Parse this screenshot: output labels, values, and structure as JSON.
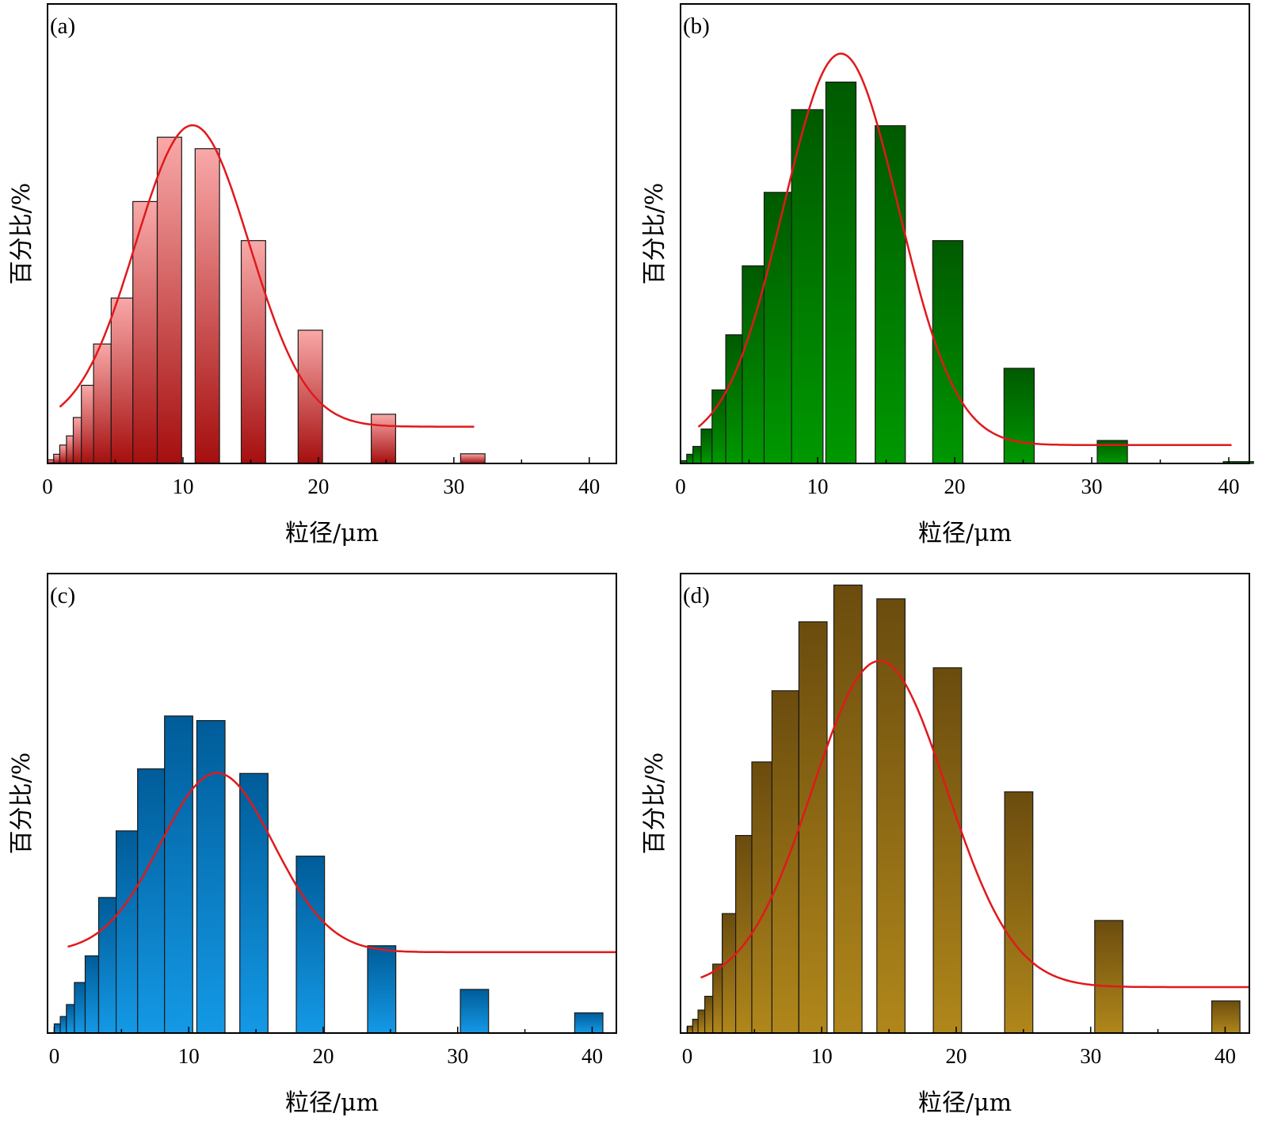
{
  "chart_data": [
    {
      "type": "bar",
      "panel_label": "(a)",
      "xlabel": "粒径/μm",
      "ylabel": "百分比/%",
      "xlim": [
        0,
        42
      ],
      "ylim": [
        0,
        100
      ],
      "xticks": [
        "0",
        "10",
        "20",
        "30",
        "40"
      ],
      "colors": {
        "top": "#f9a8a8",
        "bottom": "#a50e0e"
      },
      "bars": [
        {
          "x0": 0.0,
          "x1": 0.45,
          "value": 0.8
        },
        {
          "x0": 0.45,
          "x1": 0.9,
          "value": 2.0
        },
        {
          "x0": 0.9,
          "x1": 1.4,
          "value": 4.0
        },
        {
          "x0": 1.4,
          "x1": 1.9,
          "value": 6.0
        },
        {
          "x0": 1.9,
          "x1": 2.5,
          "value": 10.0
        },
        {
          "x0": 2.5,
          "x1": 3.4,
          "value": 17.0
        },
        {
          "x0": 3.4,
          "x1": 4.7,
          "value": 26.0
        },
        {
          "x0": 4.7,
          "x1": 6.3,
          "value": 36.0
        },
        {
          "x0": 6.3,
          "x1": 8.1,
          "value": 57.0
        },
        {
          "x0": 8.1,
          "x1": 9.9,
          "value": 71.0
        },
        {
          "x0": 10.9,
          "x1": 12.7,
          "value": 68.5
        },
        {
          "x0": 14.3,
          "x1": 16.1,
          "value": 48.5
        },
        {
          "x0": 18.5,
          "x1": 20.3,
          "value": 29.0
        },
        {
          "x0": 23.9,
          "x1": 25.7,
          "value": 10.7
        },
        {
          "x0": 30.5,
          "x1": 32.3,
          "value": 2.1
        }
      ],
      "fit": {
        "mu": 10.7,
        "sigma": 4.2,
        "height": 65.6,
        "baseline": 8.0,
        "x_start": 0.9,
        "x_end": 31.5,
        "color": "#e0191c"
      }
    },
    {
      "type": "bar",
      "panel_label": "(b)",
      "xlabel": "粒径/μm",
      "ylabel": "百分比/%",
      "xlim": [
        0,
        41.5
      ],
      "ylim": [
        0,
        100
      ],
      "xticks": [
        "0",
        "10",
        "20",
        "30",
        "40"
      ],
      "colors": {
        "top": "#005a00",
        "bottom": "#009800"
      },
      "bars": [
        {
          "x0": 0.0,
          "x1": 0.45,
          "value": 0.6
        },
        {
          "x0": 0.45,
          "x1": 0.9,
          "value": 2.0
        },
        {
          "x0": 0.9,
          "x1": 1.5,
          "value": 3.7
        },
        {
          "x0": 1.5,
          "x1": 2.3,
          "value": 7.5
        },
        {
          "x0": 2.3,
          "x1": 3.3,
          "value": 16.0
        },
        {
          "x0": 3.3,
          "x1": 4.5,
          "value": 28.0
        },
        {
          "x0": 4.5,
          "x1": 6.1,
          "value": 43.0
        },
        {
          "x0": 6.1,
          "x1": 8.1,
          "value": 59.0
        },
        {
          "x0": 8.1,
          "x1": 10.4,
          "value": 77.0
        },
        {
          "x0": 10.6,
          "x1": 12.8,
          "value": 83.0
        },
        {
          "x0": 14.2,
          "x1": 16.4,
          "value": 73.5
        },
        {
          "x0": 18.4,
          "x1": 20.6,
          "value": 48.5
        },
        {
          "x0": 23.6,
          "x1": 25.8,
          "value": 20.7
        },
        {
          "x0": 30.4,
          "x1": 32.6,
          "value": 5.0
        },
        {
          "x0": 39.6,
          "x1": 41.8,
          "value": 0.4
        }
      ],
      "fit": {
        "mu": 11.7,
        "sigma": 4.2,
        "height": 85.2,
        "baseline": 4.0,
        "x_start": 1.3,
        "x_end": 40.2,
        "color": "#e0191c"
      }
    },
    {
      "type": "bar",
      "panel_label": "(c)",
      "xlabel": "粒径/μm",
      "ylabel": "百分比/%",
      "xlim": [
        -0.5,
        41.8
      ],
      "ylim": [
        0,
        100
      ],
      "xticks": [
        "0",
        "10",
        "20",
        "30",
        "40"
      ],
      "colors": {
        "top": "#005c99",
        "bottom": "#1499e6"
      },
      "bars": [
        {
          "x0": 0.0,
          "x1": 0.45,
          "value": 2.0
        },
        {
          "x0": 0.45,
          "x1": 0.9,
          "value": 3.6
        },
        {
          "x0": 0.9,
          "x1": 1.5,
          "value": 6.2
        },
        {
          "x0": 1.5,
          "x1": 2.3,
          "value": 11.0
        },
        {
          "x0": 2.3,
          "x1": 3.3,
          "value": 16.8
        },
        {
          "x0": 3.3,
          "x1": 4.6,
          "value": 29.5
        },
        {
          "x0": 4.6,
          "x1": 6.2,
          "value": 44.0
        },
        {
          "x0": 6.2,
          "x1": 8.2,
          "value": 57.5
        },
        {
          "x0": 8.2,
          "x1": 10.3,
          "value": 69.0
        },
        {
          "x0": 10.6,
          "x1": 12.7,
          "value": 68.0
        },
        {
          "x0": 13.8,
          "x1": 15.9,
          "value": 56.5
        },
        {
          "x0": 18.0,
          "x1": 20.1,
          "value": 38.5
        },
        {
          "x0": 23.3,
          "x1": 25.4,
          "value": 19.0
        },
        {
          "x0": 30.2,
          "x1": 32.3,
          "value": 9.5
        },
        {
          "x0": 38.7,
          "x1": 40.8,
          "value": 4.4
        }
      ],
      "fit": {
        "mu": 12.1,
        "sigma": 4.2,
        "height": 39.0,
        "baseline": 17.6,
        "x_start": 1.0,
        "x_end": 41.8,
        "color": "#e0191c"
      }
    },
    {
      "type": "bar",
      "panel_label": "(d)",
      "xlabel": "粒径/μm",
      "ylabel": "百分比/%",
      "xlim": [
        -0.5,
        41.8
      ],
      "ylim": [
        0,
        100
      ],
      "xticks": [
        "0",
        "10",
        "20",
        "30",
        "40"
      ],
      "colors": {
        "top": "#6b4c0e",
        "bottom": "#b0871b"
      },
      "bars": [
        {
          "x0": 0.0,
          "x1": 0.4,
          "value": 1.5
        },
        {
          "x0": 0.4,
          "x1": 0.8,
          "value": 3.0
        },
        {
          "x0": 0.8,
          "x1": 1.3,
          "value": 5.0
        },
        {
          "x0": 1.3,
          "x1": 1.9,
          "value": 8.0
        },
        {
          "x0": 1.9,
          "x1": 2.6,
          "value": 15.0
        },
        {
          "x0": 2.6,
          "x1": 3.6,
          "value": 26.0
        },
        {
          "x0": 3.6,
          "x1": 4.8,
          "value": 43.0
        },
        {
          "x0": 4.8,
          "x1": 6.3,
          "value": 59.0
        },
        {
          "x0": 6.3,
          "x1": 8.3,
          "value": 74.5
        },
        {
          "x0": 8.3,
          "x1": 10.4,
          "value": 89.5
        },
        {
          "x0": 10.9,
          "x1": 13.0,
          "value": 97.5
        },
        {
          "x0": 14.1,
          "x1": 16.2,
          "value": 94.5
        },
        {
          "x0": 18.3,
          "x1": 20.4,
          "value": 79.5
        },
        {
          "x0": 23.6,
          "x1": 25.7,
          "value": 52.5
        },
        {
          "x0": 30.3,
          "x1": 32.4,
          "value": 24.5
        },
        {
          "x0": 39.0,
          "x1": 41.1,
          "value": 7.0
        }
      ],
      "fit": {
        "mu": 14.3,
        "sigma": 5.0,
        "height": 71.0,
        "baseline": 10.0,
        "x_start": 1.0,
        "x_end": 41.8,
        "color": "#e0191c"
      }
    }
  ]
}
